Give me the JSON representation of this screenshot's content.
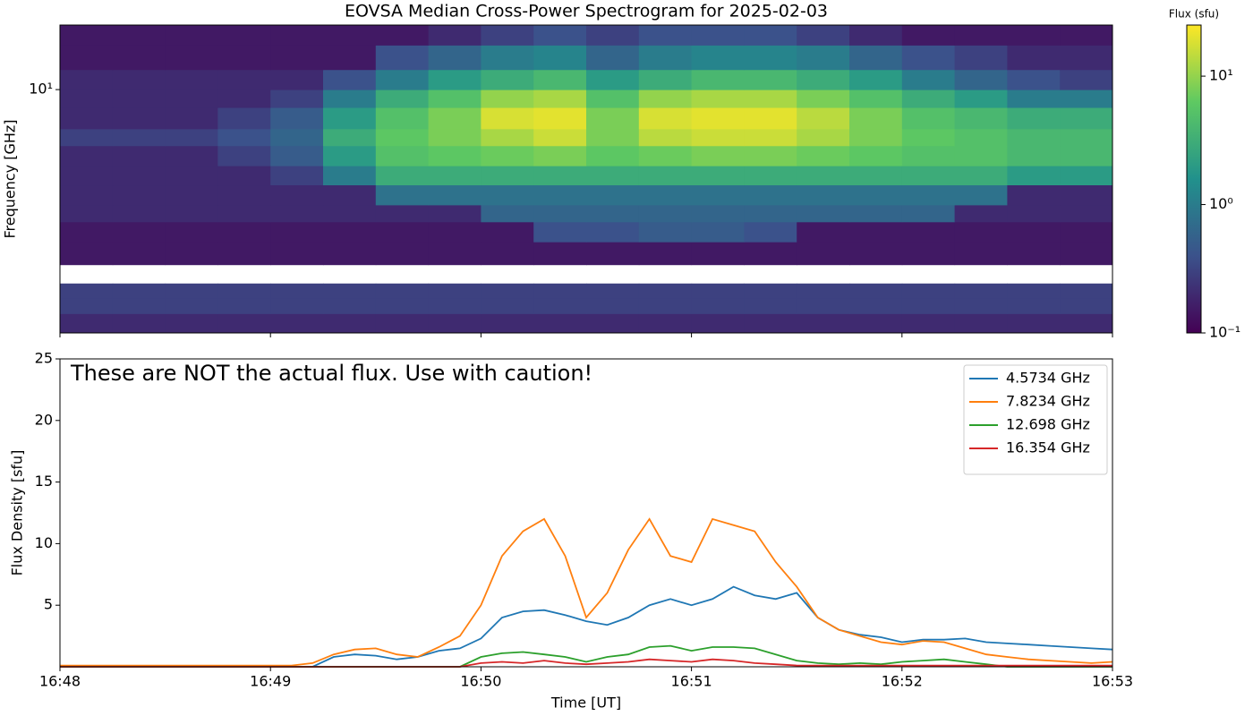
{
  "chart_data": [
    {
      "type": "heatmap",
      "title": "EOVSA Median Cross-Power Spectrogram for 2025-02-03",
      "y_label": "Frequency [GHz]",
      "colorbar_label": "Flux (sfu)",
      "colormap": "viridis",
      "log_y": true,
      "xlim": [
        0,
        5
      ],
      "xticks": [
        {
          "value": 0,
          "label": "16:48"
        },
        {
          "value": 1,
          "label": "16:49"
        },
        {
          "value": 2,
          "label": "16:50"
        },
        {
          "value": 3,
          "label": "16:51"
        },
        {
          "value": 4,
          "label": "16:52"
        },
        {
          "value": 5,
          "label": "16:53"
        }
      ],
      "ylim": [
        1.09,
        18
      ],
      "yticks": [
        {
          "value": 10,
          "label": "10¹"
        }
      ],
      "clim": [
        0.1,
        25
      ],
      "cticks": [
        {
          "value": 0.1,
          "label": "10⁻¹"
        },
        {
          "value": 1,
          "label": "10⁰"
        },
        {
          "value": 10,
          "label": "10¹"
        }
      ],
      "x_bins": [
        0,
        0.25,
        0.5,
        0.75,
        1,
        1.25,
        1.5,
        1.75,
        2,
        2.25,
        2.5,
        2.75,
        3,
        3.25,
        3.5,
        3.75,
        4,
        4.25,
        4.5,
        4.75,
        5
      ],
      "y_bins": [
        1.09,
        1.3,
        1.5,
        1.71,
        2.03,
        2.5,
        3,
        3.5,
        4.2,
        5,
        6,
        7,
        8.5,
        10,
        12,
        15,
        18
      ],
      "values": [
        [
          0.2,
          0.2,
          0.2,
          0.2,
          0.2,
          0.2,
          0.2,
          0.2,
          0.2,
          0.2,
          0.2,
          0.2,
          0.2,
          0.2,
          0.2,
          0.2,
          0.2,
          0.2,
          0.2,
          0.2
        ],
        [
          0.3,
          0.3,
          0.3,
          0.3,
          0.3,
          0.3,
          0.3,
          0.3,
          0.3,
          0.3,
          0.3,
          0.3,
          0.3,
          0.3,
          0.3,
          0.3,
          0.3,
          0.3,
          0.3,
          0.3
        ],
        [
          0.3,
          0.3,
          0.3,
          0.3,
          0.3,
          0.3,
          0.3,
          0.3,
          0.3,
          0.3,
          0.3,
          0.3,
          0.3,
          0.3,
          0.3,
          0.3,
          0.3,
          0.3,
          0.3,
          0.3
        ],
        [
          null,
          null,
          null,
          null,
          null,
          null,
          null,
          null,
          null,
          null,
          null,
          null,
          null,
          null,
          null,
          null,
          null,
          null,
          null,
          null
        ],
        [
          0.15,
          0.15,
          0.15,
          0.15,
          0.15,
          0.15,
          0.15,
          0.15,
          0.15,
          0.15,
          0.15,
          0.15,
          0.15,
          0.15,
          0.15,
          0.15,
          0.15,
          0.15,
          0.15,
          0.15
        ],
        [
          0.15,
          0.15,
          0.15,
          0.15,
          0.15,
          0.15,
          0.15,
          0.15,
          0.15,
          0.4,
          0.4,
          0.5,
          0.5,
          0.4,
          0.15,
          0.15,
          0.15,
          0.15,
          0.15,
          0.15
        ],
        [
          0.2,
          0.2,
          0.2,
          0.2,
          0.2,
          0.2,
          0.2,
          0.2,
          0.6,
          0.6,
          0.6,
          0.6,
          0.6,
          0.6,
          0.6,
          0.6,
          0.6,
          0.2,
          0.2,
          0.2
        ],
        [
          0.2,
          0.2,
          0.2,
          0.2,
          0.2,
          0.2,
          0.8,
          0.8,
          0.8,
          0.8,
          0.8,
          0.8,
          0.8,
          0.8,
          0.8,
          0.8,
          0.8,
          0.8,
          0.2,
          0.2
        ],
        [
          0.2,
          0.2,
          0.2,
          0.2,
          0.3,
          1,
          3,
          3,
          3,
          3,
          3,
          3,
          3,
          3,
          3,
          3,
          3,
          3,
          2,
          2
        ],
        [
          0.2,
          0.2,
          0.2,
          0.3,
          0.5,
          2,
          5,
          6,
          7,
          8,
          6,
          7,
          8,
          8,
          7,
          6,
          5,
          5,
          4,
          4
        ],
        [
          0.3,
          0.3,
          0.3,
          0.4,
          0.6,
          3,
          6,
          8,
          12,
          16,
          8,
          14,
          16,
          16,
          12,
          8,
          6,
          5,
          4,
          4
        ],
        [
          0.2,
          0.2,
          0.2,
          0.3,
          0.5,
          2,
          5,
          8,
          18,
          20,
          8,
          18,
          20,
          20,
          14,
          8,
          5,
          4,
          3,
          3
        ],
        [
          0.2,
          0.2,
          0.2,
          0.2,
          0.3,
          1,
          3,
          5,
          10,
          12,
          5,
          10,
          12,
          12,
          8,
          5,
          3,
          2,
          1,
          1
        ],
        [
          0.2,
          0.2,
          0.2,
          0.2,
          0.2,
          0.4,
          1,
          2,
          3,
          4,
          2,
          3,
          4,
          4,
          3,
          2,
          1,
          0.6,
          0.4,
          0.3
        ],
        [
          0.15,
          0.15,
          0.15,
          0.15,
          0.15,
          0.15,
          0.4,
          0.6,
          1,
          1.2,
          0.6,
          1,
          1.2,
          1.2,
          1,
          0.6,
          0.4,
          0.3,
          0.2,
          0.2
        ],
        [
          0.15,
          0.15,
          0.15,
          0.15,
          0.15,
          0.15,
          0.15,
          0.2,
          0.3,
          0.4,
          0.3,
          0.4,
          0.4,
          0.4,
          0.3,
          0.2,
          0.15,
          0.15,
          0.15,
          0.15
        ]
      ]
    },
    {
      "type": "line",
      "x_label": "Time [UT]",
      "y_label": "Flux Density [sfu]",
      "annotation": "These are NOT the actual flux. Use with caution!",
      "legend": "upper right",
      "xlim": [
        0,
        5
      ],
      "xticks": [
        {
          "value": 0,
          "label": "16:48"
        },
        {
          "value": 1,
          "label": "16:49"
        },
        {
          "value": 2,
          "label": "16:50"
        },
        {
          "value": 3,
          "label": "16:51"
        },
        {
          "value": 4,
          "label": "16:52"
        },
        {
          "value": 5,
          "label": "16:53"
        }
      ],
      "ylim": [
        0,
        25
      ],
      "yticks": [
        5,
        10,
        15,
        20,
        25
      ],
      "x": [
        0,
        0.1,
        0.2,
        0.3,
        0.4,
        0.5,
        0.6,
        0.7,
        0.8,
        0.9,
        1,
        1.1,
        1.2,
        1.3,
        1.4,
        1.5,
        1.6,
        1.7,
        1.8,
        1.9,
        2,
        2.1,
        2.2,
        2.3,
        2.4,
        2.5,
        2.6,
        2.7,
        2.8,
        2.9,
        3,
        3.1,
        3.2,
        3.3,
        3.4,
        3.5,
        3.6,
        3.7,
        3.8,
        3.9,
        4,
        4.1,
        4.2,
        4.3,
        4.4,
        4.5,
        4.6,
        4.7,
        4.8,
        4.9,
        5
      ],
      "series": [
        {
          "name": "4.5734 GHz",
          "color": "#1f77b4",
          "values": [
            0,
            0,
            0,
            0,
            0,
            0,
            0,
            0,
            0,
            0,
            0,
            0,
            0,
            0.8,
            1,
            0.9,
            0.6,
            0.8,
            1.3,
            1.5,
            2.3,
            4,
            4.5,
            4.6,
            4.2,
            3.7,
            3.4,
            4,
            5,
            5.5,
            5,
            5.5,
            6.5,
            5.8,
            5.5,
            6,
            4,
            3,
            2.6,
            2.4,
            2,
            2.2,
            2.2,
            2.3,
            2,
            1.9,
            1.8,
            1.7,
            1.6,
            1.5,
            1.4
          ]
        },
        {
          "name": "7.8234 GHz",
          "color": "#ff7f0e",
          "values": [
            0.1,
            0.1,
            0.1,
            0.1,
            0.1,
            0.1,
            0.1,
            0.1,
            0.1,
            0.1,
            0.1,
            0.1,
            0.3,
            1,
            1.4,
            1.5,
            1,
            0.8,
            1.6,
            2.5,
            5,
            9,
            11,
            12,
            9,
            4,
            6,
            9.5,
            12,
            9,
            8.5,
            12,
            11.5,
            11,
            8.5,
            6.5,
            4,
            3,
            2.5,
            2,
            1.8,
            2.1,
            2,
            1.5,
            1,
            0.8,
            0.6,
            0.5,
            0.4,
            0.3,
            0.4
          ]
        },
        {
          "name": "12.698 GHz",
          "color": "#2ca02c",
          "values": [
            0,
            0,
            0,
            0,
            0,
            0,
            0,
            0,
            0,
            0,
            0,
            0,
            0,
            0,
            0,
            0,
            0,
            0,
            0,
            0,
            0.8,
            1.1,
            1.2,
            1,
            0.8,
            0.4,
            0.8,
            1,
            1.6,
            1.7,
            1.3,
            1.6,
            1.6,
            1.5,
            1,
            0.5,
            0.3,
            0.2,
            0.3,
            0.2,
            0.4,
            0.5,
            0.6,
            0.4,
            0.2,
            0,
            0,
            0,
            0,
            0,
            0
          ]
        },
        {
          "name": "16.354 GHz",
          "color": "#d62728",
          "values": [
            0,
            0,
            0,
            0,
            0,
            0,
            0,
            0,
            0,
            0,
            0,
            0,
            0,
            0,
            0,
            0,
            0,
            0,
            0,
            0,
            0.3,
            0.4,
            0.3,
            0.5,
            0.3,
            0.2,
            0.3,
            0.4,
            0.6,
            0.5,
            0.4,
            0.6,
            0.5,
            0.3,
            0.2,
            0.1,
            0.1,
            0.1,
            0.1,
            0.1,
            0.1,
            0.1,
            0.1,
            0.1,
            0.1,
            0.1,
            0.1,
            0.1,
            0.1,
            0.1,
            0.1
          ]
        }
      ]
    }
  ]
}
